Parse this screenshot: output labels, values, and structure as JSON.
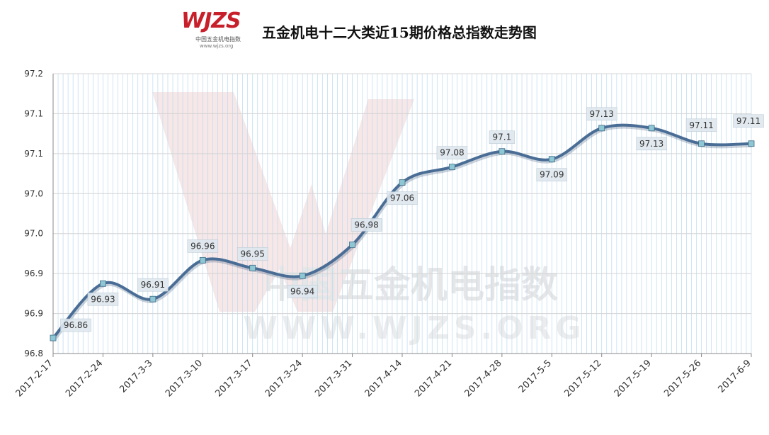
{
  "header": {
    "logo_text": "WJZS",
    "logo_subtitle": "中国五金机电指数",
    "logo_url": "www.wjzs.org",
    "title": "五金机电十二大类近15期价格总指数走势图"
  },
  "watermark": {
    "cn": "中国五金机电指数",
    "url": "WWW.WJZS.ORG"
  },
  "colors": {
    "line": "#4a6d95",
    "marker": "#8ec6d3",
    "grid": "#b9daf0",
    "label_box": "#dfe8ef",
    "watermark": "#f1d4d4"
  },
  "chart_data": {
    "type": "line",
    "title": "五金机电十二大类近15期价格总指数走势图",
    "categories": [
      "2017-2-17",
      "2017-2-24",
      "2017-3-3",
      "2017-3-10",
      "2017-3-17",
      "2017-3-24",
      "2017-3-31",
      "2017-4-14",
      "2017-4-21",
      "2017-4-28",
      "2017-5-5",
      "2017-5-12",
      "2017-5-19",
      "2017-5-26",
      "2017-6-9"
    ],
    "series": [
      {
        "values": [
          96.86,
          96.93,
          96.91,
          96.96,
          96.95,
          96.94,
          96.98,
          97.06,
          97.08,
          97.1,
          97.09,
          97.13,
          97.13,
          97.11,
          97.11
        ],
        "labels": [
          "96.86",
          "96.93",
          "96.91",
          "96.96",
          "96.95",
          "96.94",
          "96.98",
          "97.06",
          "97.08",
          "97.1",
          "97.09",
          "97.13",
          "97.13",
          "97.11",
          "97.11"
        ]
      }
    ],
    "y_tick_labels": [
      "96.8",
      "96.9",
      "96.9",
      "97.0",
      "97.0",
      "97.1",
      "97.1",
      "97.2"
    ],
    "ylim": [
      96.84,
      97.2
    ],
    "grid": true,
    "legend": "none"
  }
}
